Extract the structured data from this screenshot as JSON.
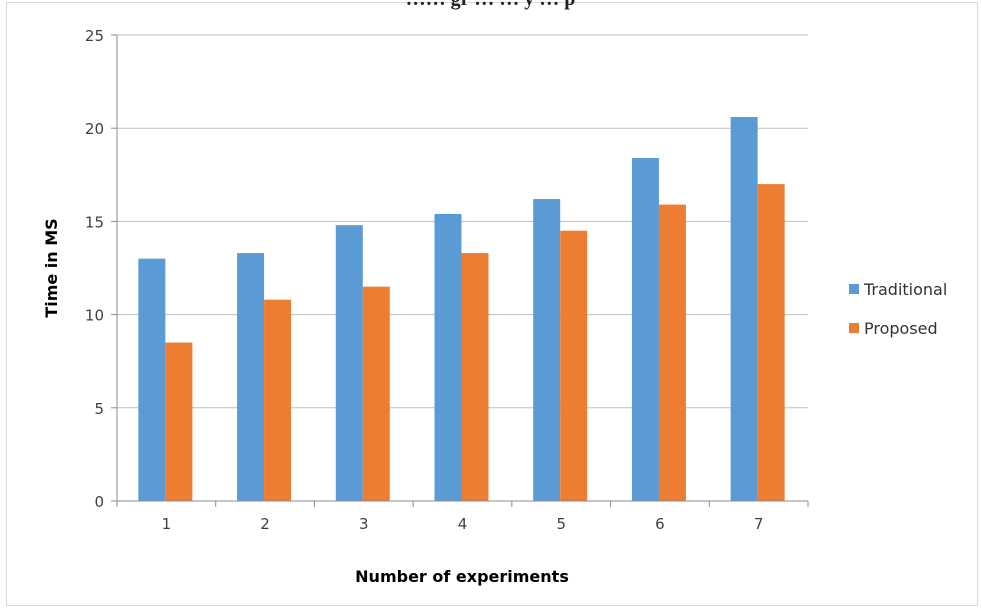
{
  "chart_data": {
    "type": "bar",
    "title": "…… gr … … y … p",
    "xlabel": "Number of experiments",
    "ylabel": "Time in MS",
    "categories": [
      "1",
      "2",
      "3",
      "4",
      "5",
      "6",
      "7"
    ],
    "series": [
      {
        "name": "Traditional",
        "color": "#5b9bd5",
        "values": [
          13.0,
          13.3,
          14.8,
          15.4,
          16.2,
          18.4,
          20.6
        ]
      },
      {
        "name": "Proposed",
        "color": "#ed7d31",
        "values": [
          8.5,
          10.8,
          11.5,
          13.3,
          14.5,
          15.9,
          17.0
        ]
      }
    ],
    "ylim": [
      0,
      25
    ],
    "yticks": [
      0,
      5,
      10,
      15,
      20,
      25
    ],
    "grid": true,
    "legend": "right"
  }
}
